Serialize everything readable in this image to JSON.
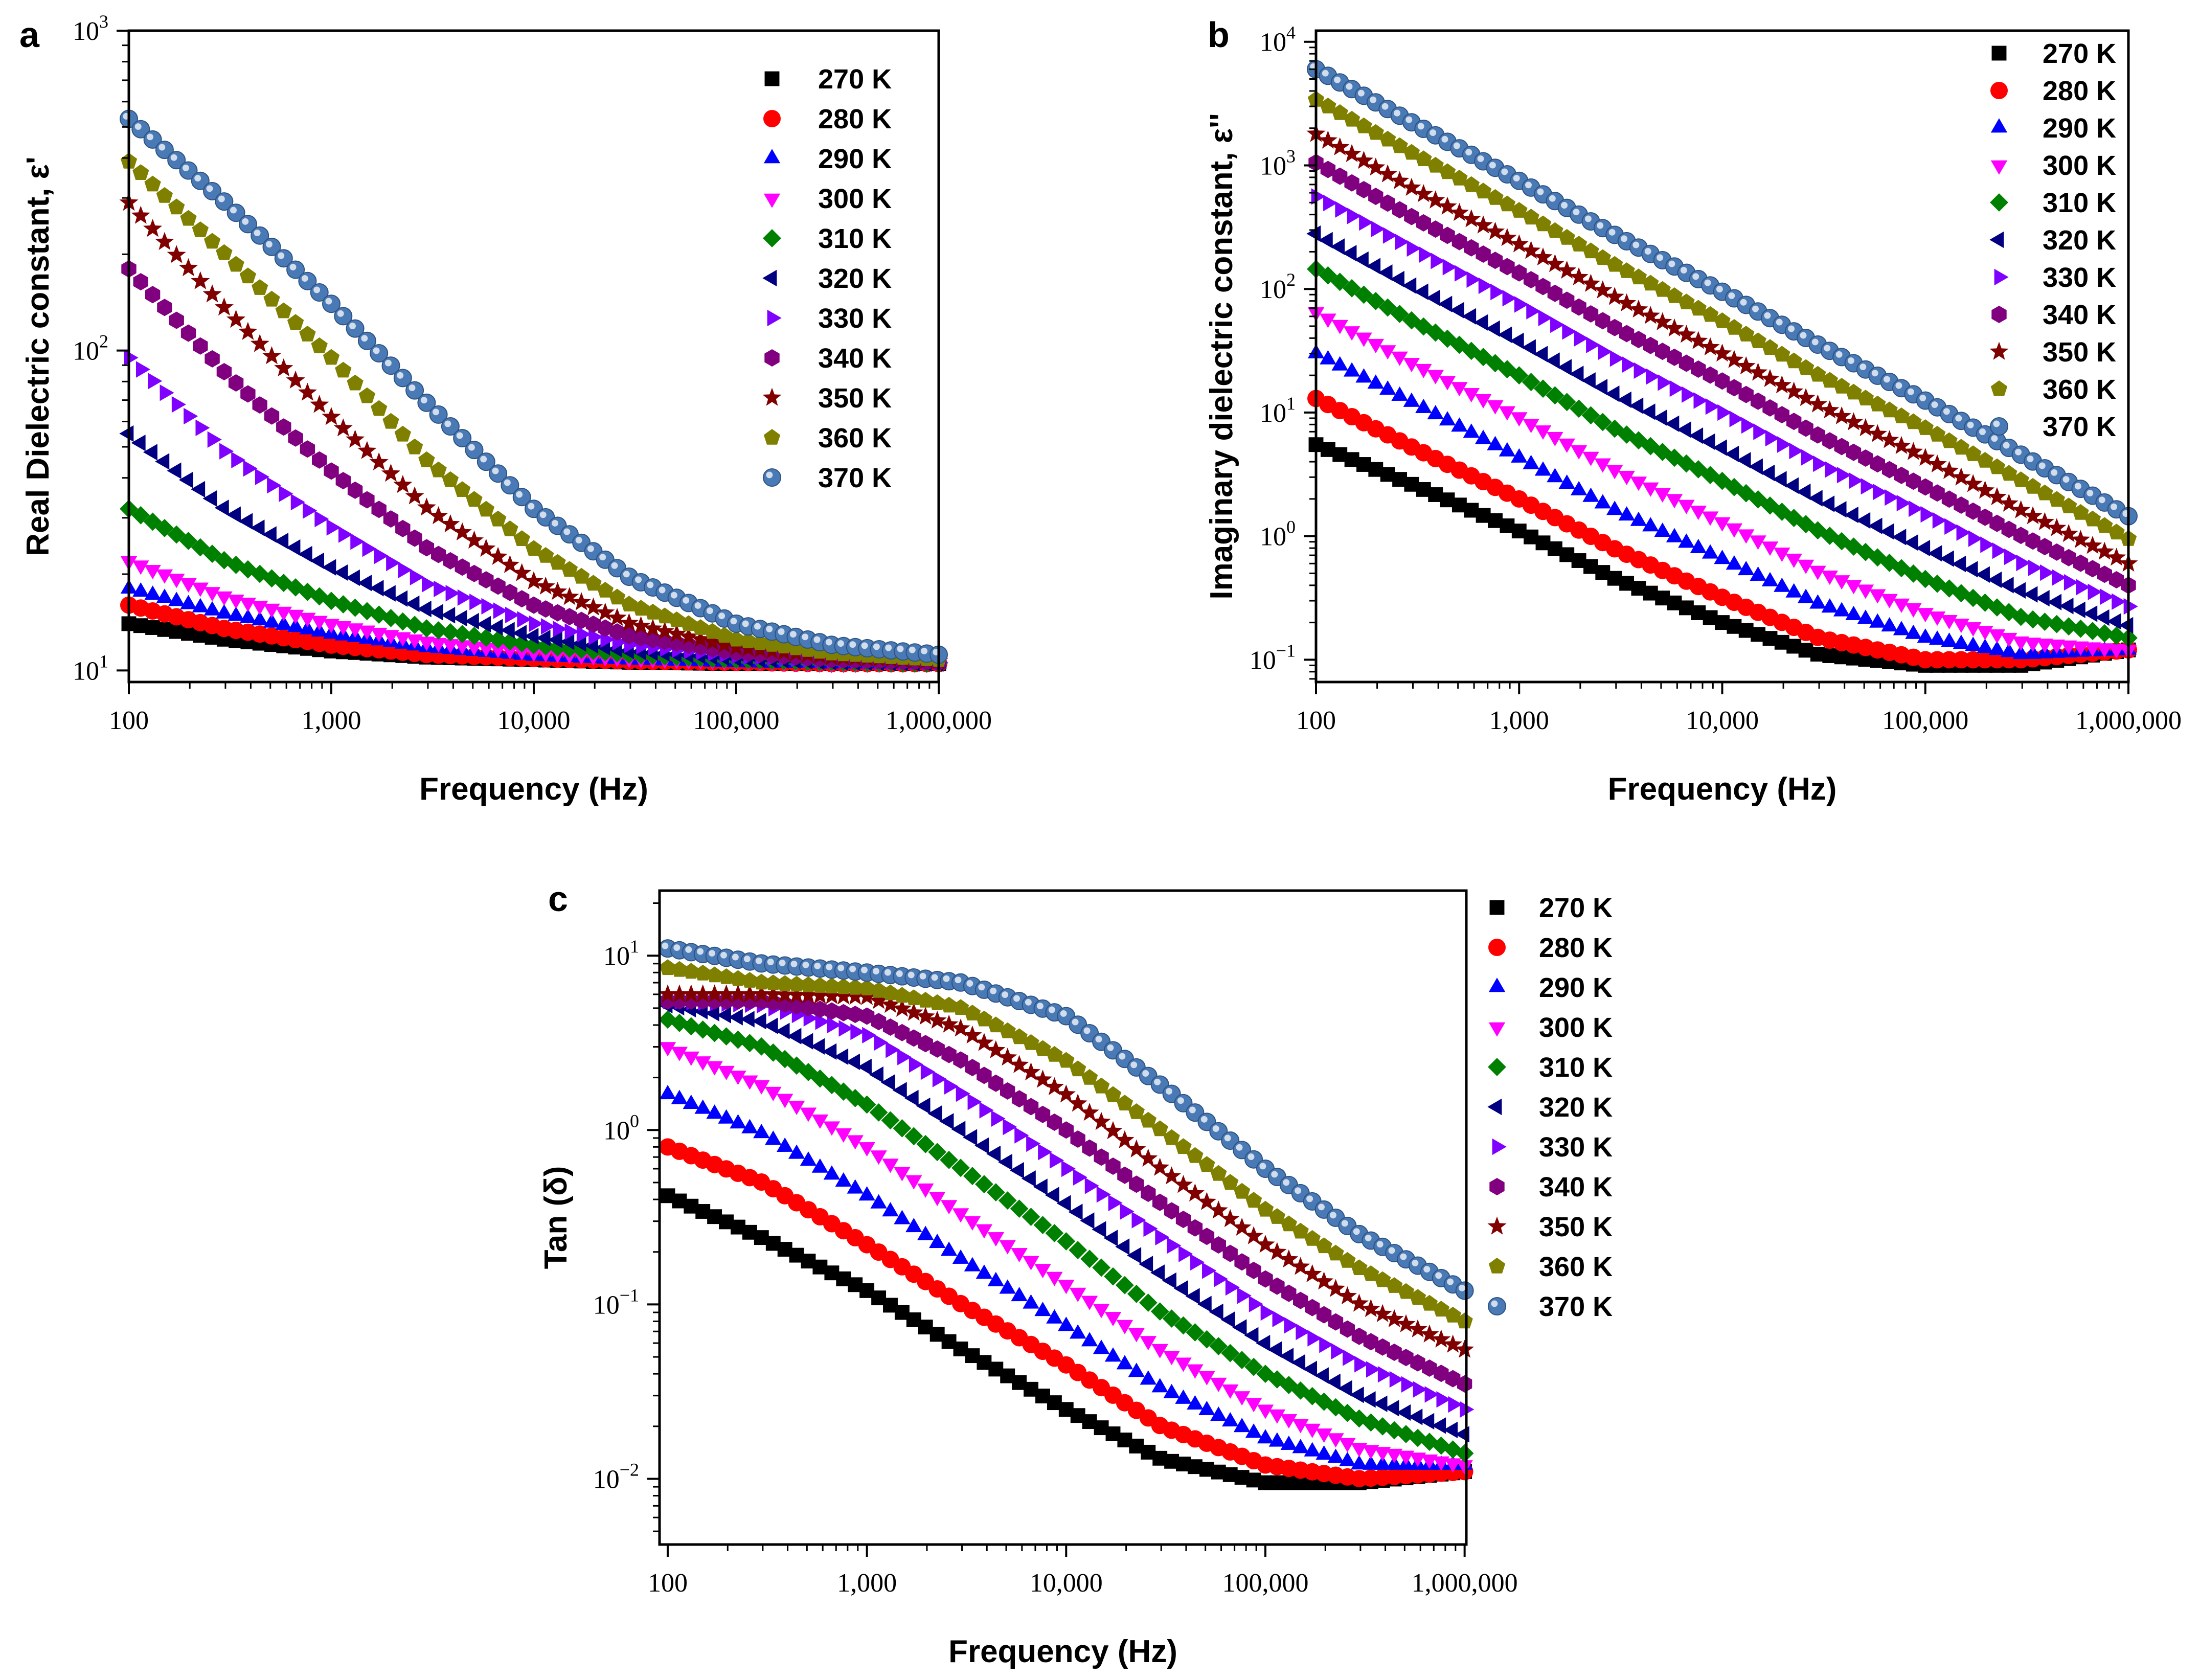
{
  "chart_data": [
    {
      "panel": "a",
      "type": "scatter",
      "xlabel": "Frequency (Hz)",
      "ylabel": "Real Dielectric constant, ε'",
      "xscale": "log",
      "yscale": "log",
      "xlim": [
        100,
        1000000
      ],
      "ylim": [
        9.2,
        1000
      ],
      "x_ticks": [
        "100",
        "1,000",
        "10,000",
        "100,000",
        "1,000,000"
      ],
      "y_ticks": [
        {
          "base": "10",
          "exp": "1"
        },
        {
          "base": "10",
          "exp": "2"
        },
        {
          "base": "10",
          "exp": "3"
        }
      ],
      "legend_position": "top-right",
      "x": [
        100,
        300,
        1000,
        3000,
        10000,
        30000,
        100000,
        300000,
        1000000
      ],
      "series": [
        {
          "name": "270 K",
          "values": [
            14,
            12.5,
            11.5,
            11,
            10.8,
            10.6,
            10.5,
            10.5,
            10.5
          ]
        },
        {
          "name": "280 K",
          "values": [
            16,
            13.5,
            12,
            11.2,
            10.9,
            10.7,
            10.6,
            10.5,
            10.5
          ]
        },
        {
          "name": "290 K",
          "values": [
            18,
            15,
            13,
            11.8,
            11.1,
            10.8,
            10.6,
            10.5,
            10.5
          ]
        },
        {
          "name": "300 K",
          "values": [
            22,
            17,
            14,
            12.3,
            11.4,
            10.9,
            10.7,
            10.5,
            10.5
          ]
        },
        {
          "name": "310 K",
          "values": [
            32,
            22,
            16.5,
            13.5,
            12,
            11.2,
            10.8,
            10.6,
            10.5
          ]
        },
        {
          "name": "320 K",
          "values": [
            55,
            32,
            21,
            15.5,
            12.8,
            11.5,
            10.9,
            10.6,
            10.5
          ]
        },
        {
          "name": "330 K",
          "values": [
            95,
            48,
            28,
            18.5,
            14,
            12,
            11.1,
            10.7,
            10.6
          ]
        },
        {
          "name": "340 K",
          "values": [
            180,
            85,
            42,
            24,
            16,
            12.8,
            11.4,
            10.8,
            10.6
          ]
        },
        {
          "name": "350 K",
          "values": [
            290,
            135,
            62,
            32,
            19,
            14,
            11.8,
            11,
            10.7
          ]
        },
        {
          "name": "360 K",
          "values": [
            390,
            200,
            95,
            45,
            24,
            16,
            12.5,
            11.3,
            10.8
          ]
        },
        {
          "name": "370 K",
          "values": [
            530,
            290,
            140,
            68,
            32,
            19.5,
            14,
            12,
            11.2
          ]
        }
      ]
    },
    {
      "panel": "b",
      "type": "scatter",
      "xlabel": "Frequency (Hz)",
      "ylabel": "Imaginary dielectric constant, ε''",
      "xscale": "log",
      "yscale": "log",
      "xlim": [
        100,
        1000000
      ],
      "ylim": [
        0.066,
        12300
      ],
      "x_ticks": [
        "100",
        "1,000",
        "10,000",
        "100,000",
        "1,000,000"
      ],
      "y_ticks": [
        {
          "base": "10",
          "exp": "−1"
        },
        {
          "base": "10",
          "exp": "0"
        },
        {
          "base": "10",
          "exp": "1"
        },
        {
          "base": "10",
          "exp": "2"
        },
        {
          "base": "10",
          "exp": "3"
        },
        {
          "base": "10",
          "exp": "4"
        }
      ],
      "legend_position": "top-right",
      "x": [
        100,
        300,
        1000,
        3000,
        10000,
        30000,
        100000,
        300000,
        1000000
      ],
      "series": [
        {
          "name": "270 K",
          "values": [
            5.5,
            2.6,
            1.1,
            0.45,
            0.2,
            0.11,
            0.09,
            0.09,
            0.12
          ]
        },
        {
          "name": "280 K",
          "values": [
            13,
            5.2,
            2,
            0.78,
            0.32,
            0.15,
            0.1,
            0.1,
            0.12
          ]
        },
        {
          "name": "290 K",
          "values": [
            30,
            12,
            4.3,
            1.6,
            0.65,
            0.28,
            0.15,
            0.11,
            0.12
          ]
        },
        {
          "name": "300 K",
          "values": [
            65,
            25,
            9.2,
            3.4,
            1.3,
            0.52,
            0.24,
            0.14,
            0.12
          ]
        },
        {
          "name": "310 K",
          "values": [
            145,
            55,
            20,
            7.3,
            2.8,
            1.1,
            0.45,
            0.22,
            0.15
          ]
        },
        {
          "name": "320 K",
          "values": [
            280,
            105,
            38,
            14,
            5.2,
            2,
            0.8,
            0.36,
            0.19
          ]
        },
        {
          "name": "330 K",
          "values": [
            560,
            210,
            75,
            27,
            10,
            3.8,
            1.5,
            0.6,
            0.27
          ]
        },
        {
          "name": "340 K",
          "values": [
            1050,
            380,
            135,
            48,
            18,
            6.5,
            2.5,
            1,
            0.4
          ]
        },
        {
          "name": "350 K",
          "values": [
            1800,
            650,
            230,
            85,
            30,
            11.5,
            4.3,
            1.6,
            0.6
          ]
        },
        {
          "name": "360 K",
          "values": [
            3400,
            1250,
            430,
            155,
            55,
            20,
            7.5,
            2.8,
            0.95
          ]
        },
        {
          "name": "370 K",
          "values": [
            6000,
            2200,
            750,
            270,
            95,
            35,
            12.5,
            4.5,
            1.45
          ]
        }
      ]
    },
    {
      "panel": "c",
      "type": "scatter",
      "xlabel": "Frequency (Hz)",
      "ylabel": "Tan (δ)",
      "xscale": "log",
      "yscale": "log",
      "xlim": [
        91,
        1020000
      ],
      "ylim": [
        0.0042,
        23.6
      ],
      "x_ticks": [
        "100",
        "1,000",
        "10,000",
        "100,000",
        "1,000,000"
      ],
      "y_ticks": [
        {
          "base": "10",
          "exp": "−2"
        },
        {
          "base": "10",
          "exp": "−1"
        },
        {
          "base": "10",
          "exp": "0"
        },
        {
          "base": "10",
          "exp": "1"
        }
      ],
      "legend_position": "right-outside",
      "x": [
        100,
        300,
        1000,
        3000,
        10000,
        30000,
        100000,
        300000,
        1000000
      ],
      "series": [
        {
          "name": "270 K",
          "values": [
            0.42,
            0.24,
            0.12,
            0.055,
            0.025,
            0.013,
            0.0095,
            0.0095,
            0.011
          ]
        },
        {
          "name": "280 K",
          "values": [
            0.8,
            0.5,
            0.22,
            0.1,
            0.045,
            0.02,
            0.012,
            0.01,
            0.011
          ]
        },
        {
          "name": "290 K",
          "values": [
            1.6,
            0.95,
            0.42,
            0.18,
            0.075,
            0.033,
            0.017,
            0.012,
            0.012
          ]
        },
        {
          "name": "300 K",
          "values": [
            3,
            1.8,
            0.8,
            0.33,
            0.13,
            0.055,
            0.025,
            0.015,
            0.012
          ]
        },
        {
          "name": "310 K",
          "values": [
            4.3,
            3,
            1.4,
            0.6,
            0.23,
            0.09,
            0.04,
            0.022,
            0.014
          ]
        },
        {
          "name": "320 K",
          "values": [
            5.2,
            4.2,
            2.3,
            1,
            0.38,
            0.15,
            0.06,
            0.03,
            0.018
          ]
        },
        {
          "name": "330 K",
          "values": [
            5.5,
            5.2,
            3.5,
            1.6,
            0.6,
            0.24,
            0.09,
            0.045,
            0.025
          ]
        },
        {
          "name": "340 K",
          "values": [
            5.5,
            5.5,
            4.5,
            2.5,
            1,
            0.38,
            0.14,
            0.065,
            0.035
          ]
        },
        {
          "name": "350 K",
          "values": [
            6,
            6,
            5.8,
            3.8,
            1.6,
            0.6,
            0.22,
            0.1,
            0.055
          ]
        },
        {
          "name": "360 K",
          "values": [
            8.5,
            7,
            6.5,
            5,
            2.5,
            1,
            0.35,
            0.16,
            0.08
          ]
        },
        {
          "name": "370 K",
          "values": [
            11,
            9,
            8,
            7,
            4.5,
            1.8,
            0.6,
            0.25,
            0.12
          ]
        }
      ]
    }
  ],
  "series_style": [
    {
      "marker": "square",
      "color": "#000000"
    },
    {
      "marker": "circle",
      "color": "#ff0000"
    },
    {
      "marker": "triangle-up",
      "color": "#0000ff"
    },
    {
      "marker": "triangle-down",
      "color": "#ff00ff"
    },
    {
      "marker": "diamond",
      "color": "#008000"
    },
    {
      "marker": "triangle-left",
      "color": "#000080"
    },
    {
      "marker": "triangle-right",
      "color": "#8000ff"
    },
    {
      "marker": "hexagon",
      "color": "#800080"
    },
    {
      "marker": "star",
      "color": "#800000"
    },
    {
      "marker": "pentagon",
      "color": "#808000"
    },
    {
      "marker": "sphere",
      "color": "#4a7ab5"
    }
  ]
}
